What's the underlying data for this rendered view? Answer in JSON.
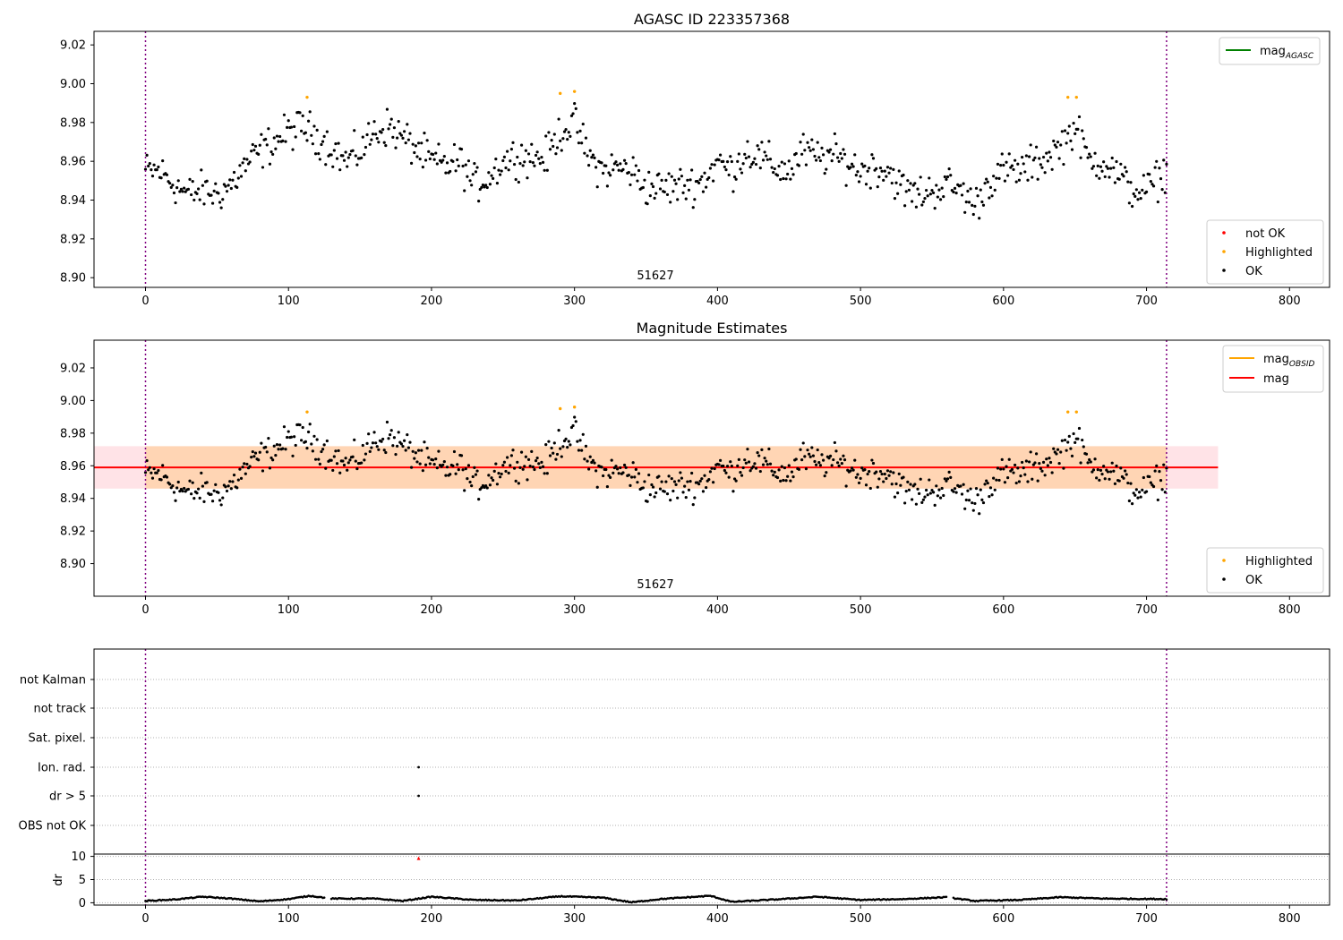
{
  "chart_data": [
    {
      "type": "scatter",
      "title": "AGASC ID 223357368",
      "annotation": "51627",
      "xlim": [
        -36,
        828
      ],
      "ylim": [
        8.895,
        9.027
      ],
      "xticks": [
        0,
        100,
        200,
        300,
        400,
        500,
        600,
        700,
        800
      ],
      "yticks": [
        8.9,
        8.92,
        8.94,
        8.96,
        8.98,
        9.0,
        9.02
      ],
      "vlines": [
        0,
        714
      ],
      "legend_lines": [
        {
          "label": "mag",
          "sub": "AGASC",
          "color": "#008000"
        }
      ],
      "legend_points": [
        {
          "label": "not OK",
          "color": "#ff0000"
        },
        {
          "label": "Highlighted",
          "color": "#ffa500"
        },
        {
          "label": "OK",
          "color": "#000000"
        }
      ],
      "highlighted": {
        "x": [
          113,
          290,
          300,
          645,
          651
        ],
        "y": [
          8.993,
          8.995,
          8.996,
          8.993,
          8.993
        ]
      },
      "ok_profile": {
        "x": [
          0,
          10,
          20,
          30,
          40,
          50,
          60,
          70,
          80,
          90,
          100,
          110,
          120,
          130,
          140,
          150,
          160,
          170,
          180,
          190,
          200,
          210,
          220,
          230,
          240,
          250,
          260,
          270,
          280,
          290,
          300,
          310,
          320,
          330,
          340,
          350,
          360,
          370,
          380,
          390,
          400,
          410,
          420,
          430,
          440,
          450,
          460,
          470,
          480,
          490,
          500,
          510,
          520,
          530,
          540,
          550,
          560,
          570,
          580,
          590,
          600,
          610,
          620,
          630,
          640,
          650,
          660,
          670,
          680,
          690,
          700,
          714
        ],
        "y": [
          8.955,
          8.955,
          8.948,
          8.943,
          8.945,
          8.943,
          8.948,
          8.958,
          8.965,
          8.97,
          8.975,
          8.978,
          8.973,
          8.967,
          8.96,
          8.965,
          8.975,
          8.978,
          8.972,
          8.966,
          8.96,
          8.958,
          8.96,
          8.948,
          8.952,
          8.96,
          8.963,
          8.962,
          8.962,
          8.975,
          8.98,
          8.962,
          8.955,
          8.957,
          8.955,
          8.947,
          8.946,
          8.947,
          8.948,
          8.95,
          8.96,
          8.955,
          8.965,
          8.962,
          8.957,
          8.955,
          8.965,
          8.962,
          8.963,
          8.96,
          8.955,
          8.957,
          8.955,
          8.945,
          8.943,
          8.945,
          8.948,
          8.945,
          8.937,
          8.95,
          8.955,
          8.955,
          8.958,
          8.962,
          8.968,
          8.978,
          8.96,
          8.96,
          8.953,
          8.945,
          8.945,
          8.955
        ],
        "spread": 0.008
      }
    },
    {
      "type": "scatter",
      "title": "Magnitude Estimates",
      "annotation": "51627",
      "xlim": [
        -36,
        828
      ],
      "ylim": [
        8.88,
        9.037
      ],
      "xticks": [
        0,
        100,
        200,
        300,
        400,
        500,
        600,
        700,
        800
      ],
      "yticks": [
        8.9,
        8.92,
        8.94,
        8.96,
        8.98,
        9.0,
        9.02
      ],
      "vlines": [
        0,
        714
      ],
      "mean_mag": 8.959,
      "mag_band": [
        8.946,
        8.972
      ],
      "band_extent": [
        -36,
        750
      ],
      "legend_lines": [
        {
          "label": "mag",
          "sub": "OBSID",
          "color": "#ffa500"
        },
        {
          "label": "mag",
          "sub": "",
          "color": "#ff0000"
        }
      ],
      "legend_points": [
        {
          "label": "Highlighted",
          "color": "#ffa500"
        },
        {
          "label": "OK",
          "color": "#000000"
        }
      ],
      "highlighted": {
        "x": [
          113,
          290,
          300,
          645,
          651
        ],
        "y": [
          8.993,
          8.995,
          8.996,
          8.993,
          8.993
        ]
      }
    },
    {
      "type": "scatter",
      "flag_rows": [
        "not Kalman",
        "not track",
        "Sat. pixel.",
        "Ion. rad.",
        "dr > 5",
        "OBS not OK"
      ],
      "flag_points": [
        {
          "row": "Ion. rad.",
          "x": 191
        },
        {
          "row": "dr > 5",
          "x": 191
        }
      ],
      "vlines": [
        0,
        714
      ],
      "dr_ylabel": "dr",
      "dr_yticks": [
        0,
        5,
        10
      ],
      "dr_ylim": [
        -0.5,
        10.5
      ],
      "dr_outlier": {
        "x": 191,
        "y": 9.6
      },
      "dr_profile": {
        "x": [
          0,
          20,
          40,
          60,
          80,
          100,
          115,
          130,
          160,
          180,
          200,
          230,
          260,
          290,
          320,
          340,
          360,
          395,
          410,
          440,
          470,
          500,
          530,
          560,
          580,
          610,
          640,
          670,
          714
        ],
        "y": [
          0.4,
          0.7,
          1.3,
          0.9,
          0.3,
          0.8,
          1.5,
          0.9,
          0.9,
          0.4,
          1.3,
          0.6,
          0.5,
          1.4,
          1.1,
          0.1,
          0.8,
          1.5,
          0.2,
          0.7,
          1.3,
          0.6,
          0.8,
          1.2,
          0.4,
          0.6,
          1.2,
          0.9,
          0.8
        ]
      },
      "xticks": [
        0,
        100,
        200,
        300,
        400,
        500,
        600,
        700,
        800
      ],
      "xlim": [
        -36,
        828
      ]
    }
  ]
}
